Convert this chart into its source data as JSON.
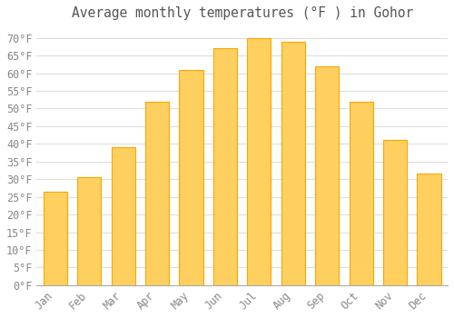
{
  "title": "Average monthly temperatures (°F ) in Gohor",
  "months": [
    "Jan",
    "Feb",
    "Mar",
    "Apr",
    "May",
    "Jun",
    "Jul",
    "Aug",
    "Sep",
    "Oct",
    "Nov",
    "Dec"
  ],
  "values": [
    26.5,
    30.5,
    39.0,
    52.0,
    61.0,
    67.0,
    70.0,
    69.0,
    62.0,
    52.0,
    41.0,
    31.5
  ],
  "bar_color": "#FFA500",
  "bar_color_light": "#FFD060",
  "background_color": "#FFFFFF",
  "grid_color": "#DDDDDD",
  "text_color": "#888888",
  "title_color": "#555555",
  "ylim": [
    0,
    73
  ],
  "yticks": [
    0,
    5,
    10,
    15,
    20,
    25,
    30,
    35,
    40,
    45,
    50,
    55,
    60,
    65,
    70
  ],
  "ylabel_suffix": "°F",
  "title_fontsize": 10.5,
  "tick_fontsize": 8.5,
  "font_family": "monospace"
}
